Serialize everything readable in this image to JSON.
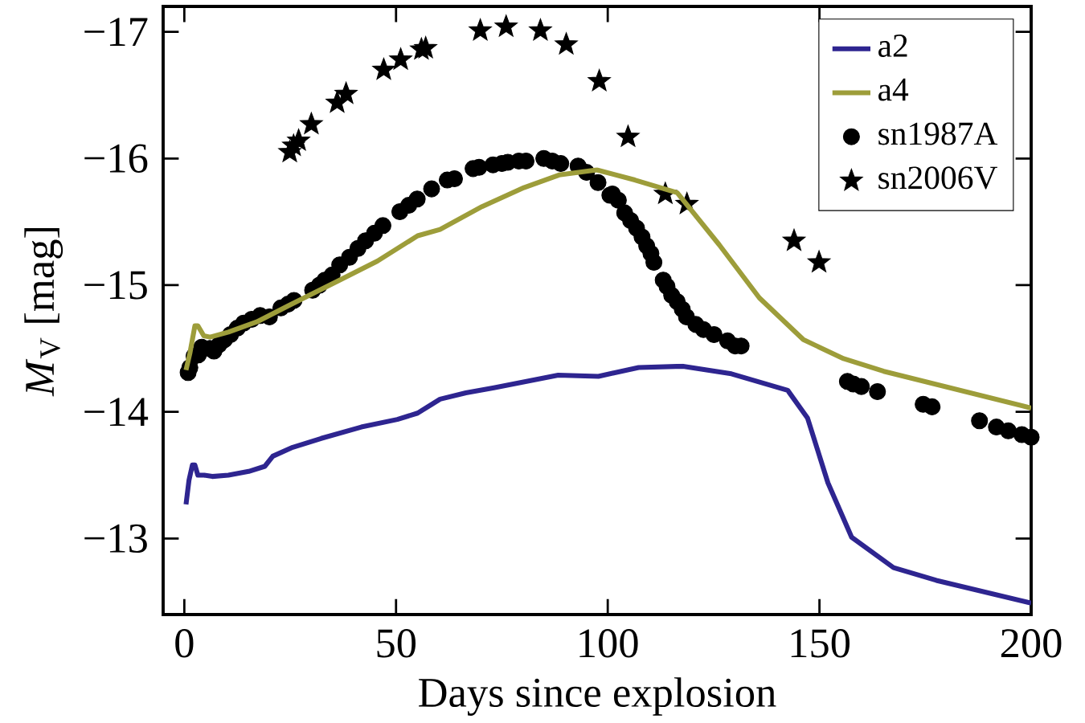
{
  "chart_data": {
    "type": "line",
    "xlabel": "Days since explosion",
    "ylabel": "*M*$_{V}$ [mag]",
    "xlim": [
      -5,
      200
    ],
    "ylim": [
      -12.4,
      -17.2
    ],
    "xticks": [
      0,
      50,
      100,
      150,
      200
    ],
    "yticks": [
      {
        "value": -17,
        "label": "−17"
      },
      {
        "value": -16,
        "label": "−16"
      },
      {
        "value": -15,
        "label": "−15"
      },
      {
        "value": -14,
        "label": "−14"
      },
      {
        "value": -13,
        "label": "−13"
      }
    ],
    "legend": "top right",
    "grid": false,
    "series": [
      {
        "name": "a2",
        "color": "#2e2590",
        "marker": "none",
        "line_style": "solid",
        "x": [
          0.4,
          1.1,
          1.9,
          2.5,
          3.2,
          4.7,
          6.6,
          10.4,
          15.2,
          19.0,
          20.9,
          25.6,
          32.3,
          41.8,
          50.3,
          55.1,
          60.4,
          66.5,
          73.1,
          80.7,
          88.3,
          97.8,
          107.3,
          117.8,
          129.2,
          142.5,
          147.2,
          152,
          157.6,
          167.5,
          177.6,
          200
        ],
        "values": [
          -13.27,
          -13.46,
          -13.58,
          -13.58,
          -13.5,
          -13.5,
          -13.49,
          -13.5,
          -13.53,
          -13.57,
          -13.65,
          -13.72,
          -13.79,
          -13.88,
          -13.94,
          -13.99,
          -14.1,
          -14.15,
          -14.19,
          -14.24,
          -14.29,
          -14.28,
          -14.35,
          -14.36,
          -14.3,
          -14.17,
          -13.95,
          -13.44,
          -13.01,
          -12.77,
          -12.67,
          -12.49
        ]
      },
      {
        "name": "a4",
        "color": "#9d9d3a",
        "marker": "none",
        "line_style": "solid",
        "x": [
          0.4,
          1.3,
          2.5,
          3.2,
          4.6,
          6.1,
          10.4,
          17.1,
          24.7,
          36.1,
          45.6,
          55.1,
          60.4,
          70.3,
          80.2,
          88.5,
          97.4,
          106.4,
          116.4,
          126.3,
          135.8,
          146.2,
          155.7,
          165.2,
          200
        ],
        "values": [
          -14.33,
          -14.46,
          -14.68,
          -14.68,
          -14.6,
          -14.59,
          -14.63,
          -14.71,
          -14.84,
          -15.03,
          -15.19,
          -15.39,
          -15.44,
          -15.62,
          -15.77,
          -15.87,
          -15.91,
          -15.83,
          -15.73,
          -15.32,
          -14.9,
          -14.57,
          -14.42,
          -14.32,
          -14.03
        ]
      },
      {
        "name": "sn1987A",
        "type": "scatter",
        "color": "#000000",
        "marker": "circle",
        "x": [
          0.9,
          1.3,
          2.3,
          3.3,
          4.1,
          6,
          7,
          8.2,
          9.5,
          10.9,
          12.5,
          14,
          15.9,
          17.9,
          20.1,
          22.8,
          24.5,
          25.9,
          30.3,
          31.9,
          33.2,
          34.9,
          36.7,
          39,
          41,
          42.8,
          44.9,
          46.9,
          50.9,
          53,
          55,
          58.4,
          62.1,
          63.8,
          68.2,
          69.6,
          72.9,
          75,
          76.4,
          79,
          80.7,
          84.9,
          86.9,
          88.9,
          93,
          95,
          97.7,
          100.5,
          101.1,
          102.5,
          104,
          105.4,
          106.8,
          108.1,
          109.2,
          110.2,
          110.9,
          113.1,
          114,
          115.1,
          116.4,
          117.6,
          118.6,
          120.8,
          122.6,
          125.1,
          128.3,
          130.1,
          131.5,
          156.6,
          158,
          159.9,
          163.7,
          174.5,
          176.6,
          187.8,
          191.8,
          194.6,
          197.8,
          200
        ],
        "values": [
          -14.31,
          -14.35,
          -14.44,
          -14.45,
          -14.51,
          -14.5,
          -14.48,
          -14.53,
          -14.57,
          -14.61,
          -14.66,
          -14.7,
          -14.73,
          -14.76,
          -14.75,
          -14.82,
          -14.85,
          -14.88,
          -14.96,
          -15.0,
          -15.04,
          -15.08,
          -15.16,
          -15.22,
          -15.29,
          -15.35,
          -15.41,
          -15.47,
          -15.58,
          -15.63,
          -15.68,
          -15.76,
          -15.83,
          -15.84,
          -15.92,
          -15.93,
          -15.95,
          -15.96,
          -15.97,
          -15.98,
          -15.98,
          -16.0,
          -15.98,
          -15.96,
          -15.94,
          -15.89,
          -15.81,
          -15.71,
          -15.72,
          -15.67,
          -15.57,
          -15.51,
          -15.45,
          -15.38,
          -15.31,
          -15.25,
          -15.18,
          -15.04,
          -14.99,
          -14.92,
          -14.87,
          -14.81,
          -14.75,
          -14.69,
          -14.65,
          -14.61,
          -14.56,
          -14.52,
          -14.52,
          -14.24,
          -14.22,
          -14.2,
          -14.16,
          -14.06,
          -14.04,
          -13.93,
          -13.88,
          -13.85,
          -13.82,
          -13.8
        ]
      },
      {
        "name": "sn2006V",
        "type": "scatter",
        "color": "#000000",
        "marker": "star",
        "x": [
          24.9,
          25.8,
          27,
          30,
          36.1,
          38.2,
          47.1,
          51.1,
          56,
          57,
          69.9,
          76,
          84.1,
          90.2,
          98,
          104.8,
          113.6,
          118.7,
          144,
          149.9
        ],
        "values": [
          -16.05,
          -16.1,
          -16.14,
          -16.27,
          -16.44,
          -16.51,
          -16.7,
          -16.78,
          -16.86,
          -16.87,
          -17.01,
          -17.04,
          -17.01,
          -16.9,
          -16.61,
          -16.17,
          -15.72,
          -15.64,
          -15.35,
          -15.18
        ]
      }
    ]
  }
}
